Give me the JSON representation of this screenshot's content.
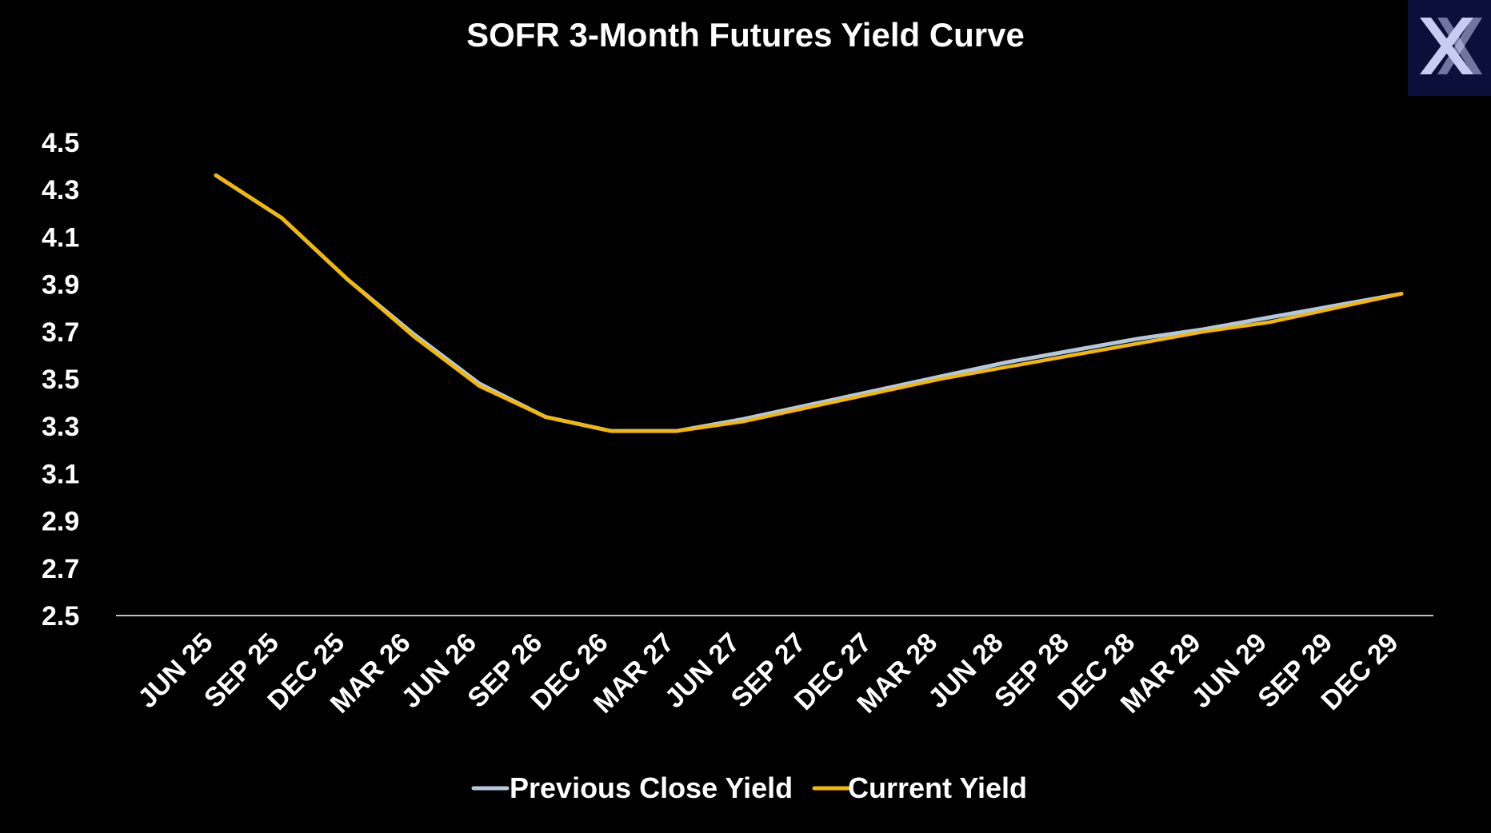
{
  "colors": {
    "background": "#000000",
    "text": "#ffffff",
    "axis_line": "#ffffff",
    "previous_close": "#b4c7dc",
    "current": "#f5b800",
    "logo_background": "#0b0f3a",
    "logo_mark": "#c9ccf2"
  },
  "logo": {
    "icon": "x-brand-logo-icon"
  },
  "chart_data": {
    "type": "line",
    "title": "SOFR 3-Month Futures Yield Curve",
    "xlabel": "",
    "ylabel": "",
    "ylim": [
      2.5,
      4.5
    ],
    "yticks": [
      "4.5",
      "4.3",
      "4.1",
      "3.9",
      "3.7",
      "3.5",
      "3.3",
      "3.1",
      "2.9",
      "2.7",
      "2.5"
    ],
    "grid": false,
    "legend_position": "bottom",
    "categories": [
      "JUN 25",
      "SEP 25",
      "DEC 25",
      "MAR 26",
      "JUN 26",
      "SEP 26",
      "DEC 26",
      "MAR 27",
      "JUN 27",
      "SEP 27",
      "DEC 27",
      "MAR 28",
      "JUN 28",
      "SEP 28",
      "DEC 28",
      "MAR 29",
      "JUN 29",
      "SEP 29",
      "DEC 29"
    ],
    "series": [
      {
        "name": "Previous Close Yield",
        "color": "#b4c7dc",
        "values": [
          4.36,
          4.18,
          3.92,
          3.69,
          3.48,
          3.34,
          3.28,
          3.28,
          3.33,
          3.39,
          3.45,
          3.51,
          3.57,
          3.62,
          3.67,
          3.71,
          3.76,
          3.81,
          3.86
        ]
      },
      {
        "name": "Current Yield",
        "color": "#f5b800",
        "values": [
          4.36,
          4.18,
          3.92,
          3.68,
          3.47,
          3.34,
          3.28,
          3.28,
          3.32,
          3.38,
          3.44,
          3.5,
          3.55,
          3.6,
          3.65,
          3.7,
          3.74,
          3.8,
          3.86
        ]
      }
    ]
  }
}
